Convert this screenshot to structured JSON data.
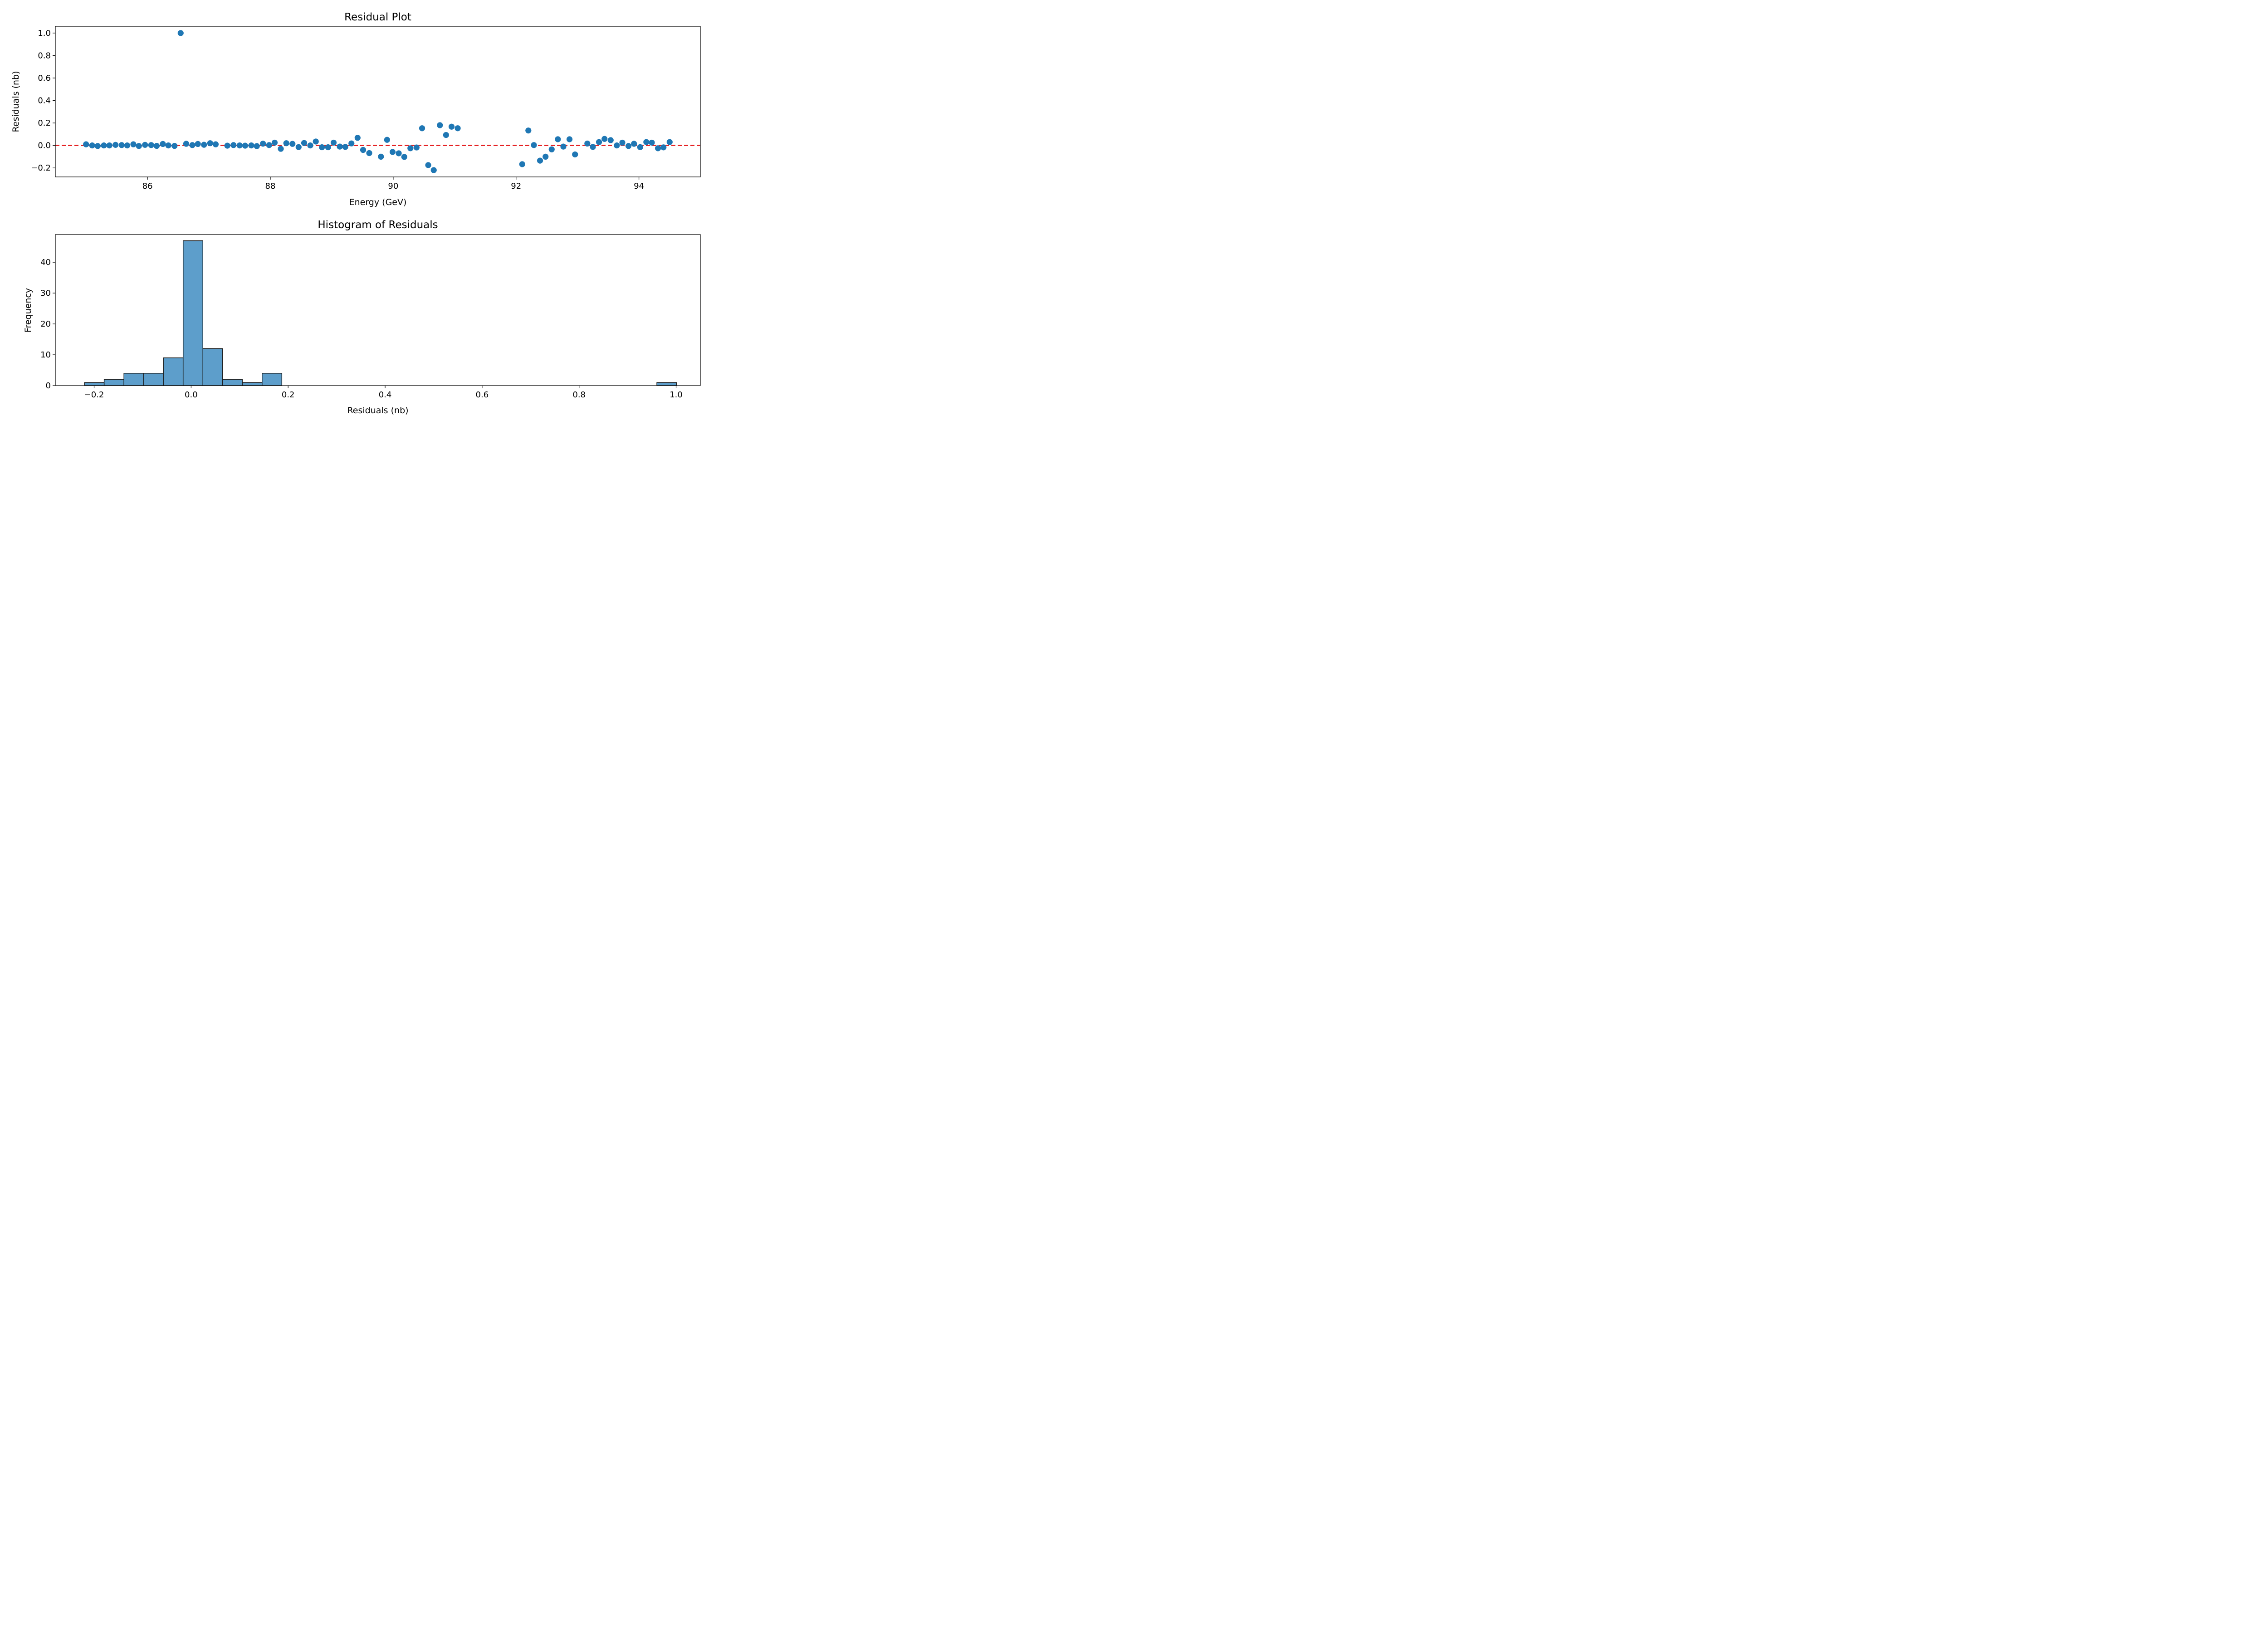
{
  "colors": {
    "marker": "#1f77b4",
    "bar_fill": "#5d9ecb",
    "bar_edge": "#1f1f1f",
    "zero_line": "#e41a1c",
    "axes": "#000000"
  },
  "chart_data": [
    {
      "type": "scatter",
      "title": "Residual Plot",
      "xlabel": "Energy (GeV)",
      "ylabel": "Residuals (nb)",
      "xlim": [
        84.5,
        95.0
      ],
      "ylim": [
        -0.28,
        1.06
      ],
      "xticks": [
        86,
        88,
        90,
        92,
        94
      ],
      "yticks": [
        -0.2,
        0.0,
        0.2,
        0.4,
        0.6,
        0.8,
        1.0
      ],
      "xtick_labels": [
        "86",
        "88",
        "90",
        "92",
        "94"
      ],
      "ytick_labels": [
        "−0.2",
        "0.0",
        "0.2",
        "0.4",
        "0.6",
        "0.8",
        "1.0"
      ],
      "reference_line": {
        "y": 0.0,
        "style": "dashed",
        "color": "red"
      },
      "grid": false,
      "x": [
        85.0,
        85.1,
        85.19,
        85.29,
        85.38,
        85.48,
        85.58,
        85.67,
        85.77,
        85.86,
        85.96,
        86.06,
        86.15,
        86.25,
        86.34,
        86.44,
        86.54,
        86.63,
        86.73,
        86.82,
        86.92,
        87.02,
        87.11,
        87.3,
        87.4,
        87.5,
        87.59,
        87.69,
        87.78,
        87.88,
        87.98,
        88.07,
        88.17,
        88.26,
        88.36,
        88.46,
        88.55,
        88.65,
        88.74,
        88.84,
        88.94,
        89.03,
        89.13,
        89.22,
        89.32,
        89.42,
        89.51,
        89.61,
        89.8,
        89.9,
        89.99,
        90.09,
        90.18,
        90.28,
        90.38,
        90.47,
        90.57,
        90.66,
        90.76,
        90.86,
        90.95,
        91.05,
        92.1,
        92.2,
        92.29,
        92.39,
        92.48,
        92.58,
        92.68,
        92.77,
        92.87,
        92.96,
        93.16,
        93.25,
        93.35,
        93.44,
        93.54,
        93.64,
        93.73,
        93.83,
        93.92,
        94.02,
        94.12,
        94.21,
        94.31,
        94.4,
        94.5
      ],
      "y": [
        0.01,
        0.0,
        -0.005,
        0.0,
        0.0,
        0.005,
        0.003,
        0.0,
        0.01,
        -0.005,
        0.005,
        0.003,
        -0.004,
        0.013,
        0.0,
        -0.004,
        1.0,
        0.015,
        0.003,
        0.013,
        0.006,
        0.02,
        0.01,
        -0.002,
        0.003,
        0.0,
        -0.002,
        0.0,
        -0.006,
        0.016,
        0.003,
        0.025,
        -0.03,
        0.02,
        0.014,
        -0.015,
        0.022,
        0.0,
        0.035,
        -0.016,
        -0.016,
        0.025,
        -0.01,
        -0.013,
        0.018,
        0.068,
        -0.04,
        -0.068,
        -0.1,
        0.05,
        -0.058,
        -0.07,
        -0.102,
        -0.025,
        -0.018,
        0.153,
        -0.175,
        -0.22,
        0.18,
        0.093,
        0.167,
        0.153,
        -0.167,
        0.133,
        0.003,
        -0.135,
        -0.1,
        -0.035,
        0.055,
        -0.01,
        0.055,
        -0.08,
        0.017,
        -0.013,
        0.03,
        0.058,
        0.047,
        0.0,
        0.025,
        -0.005,
        0.015,
        -0.015,
        0.03,
        0.025,
        -0.025,
        -0.017,
        0.03
      ]
    },
    {
      "type": "bar",
      "title": "Histogram of Residuals",
      "xlabel": "Residuals (nb)",
      "ylabel": "Frequency",
      "xlim": [
        -0.28,
        1.05
      ],
      "ylim": [
        0,
        49
      ],
      "xticks": [
        -0.2,
        0.0,
        0.2,
        0.4,
        0.6,
        0.8,
        1.0
      ],
      "yticks": [
        0,
        10,
        20,
        30,
        40
      ],
      "xtick_labels": [
        "−0.2",
        "0.0",
        "0.2",
        "0.4",
        "0.6",
        "0.8",
        "1.0"
      ],
      "ytick_labels": [
        "0",
        "10",
        "20",
        "30",
        "40"
      ],
      "grid": false,
      "bin_start": -0.22,
      "bin_width": 0.0407,
      "counts": [
        1,
        2,
        4,
        4,
        9,
        47,
        12,
        2,
        1,
        4,
        0,
        0,
        0,
        0,
        0,
        0,
        0,
        0,
        0,
        0,
        0,
        0,
        0,
        0,
        0,
        0,
        0,
        0,
        0,
        1
      ]
    }
  ]
}
